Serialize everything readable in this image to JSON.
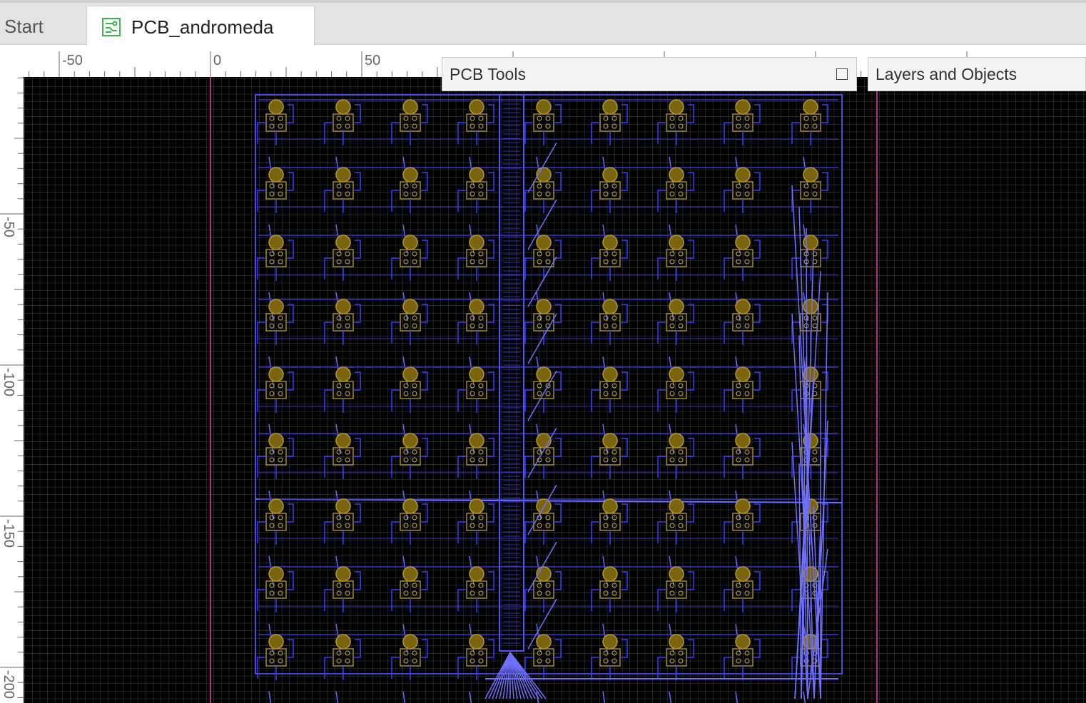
{
  "tabs": [
    "Start",
    "PCB_andromeda"
  ],
  "rulers": {
    "horizontal": [
      -50,
      0,
      50
    ],
    "vertical": [
      -50,
      -100,
      -150,
      -200
    ]
  },
  "panels": {
    "pcb_tools": "PCB Tools",
    "layers": "Layers and Objects"
  }
}
